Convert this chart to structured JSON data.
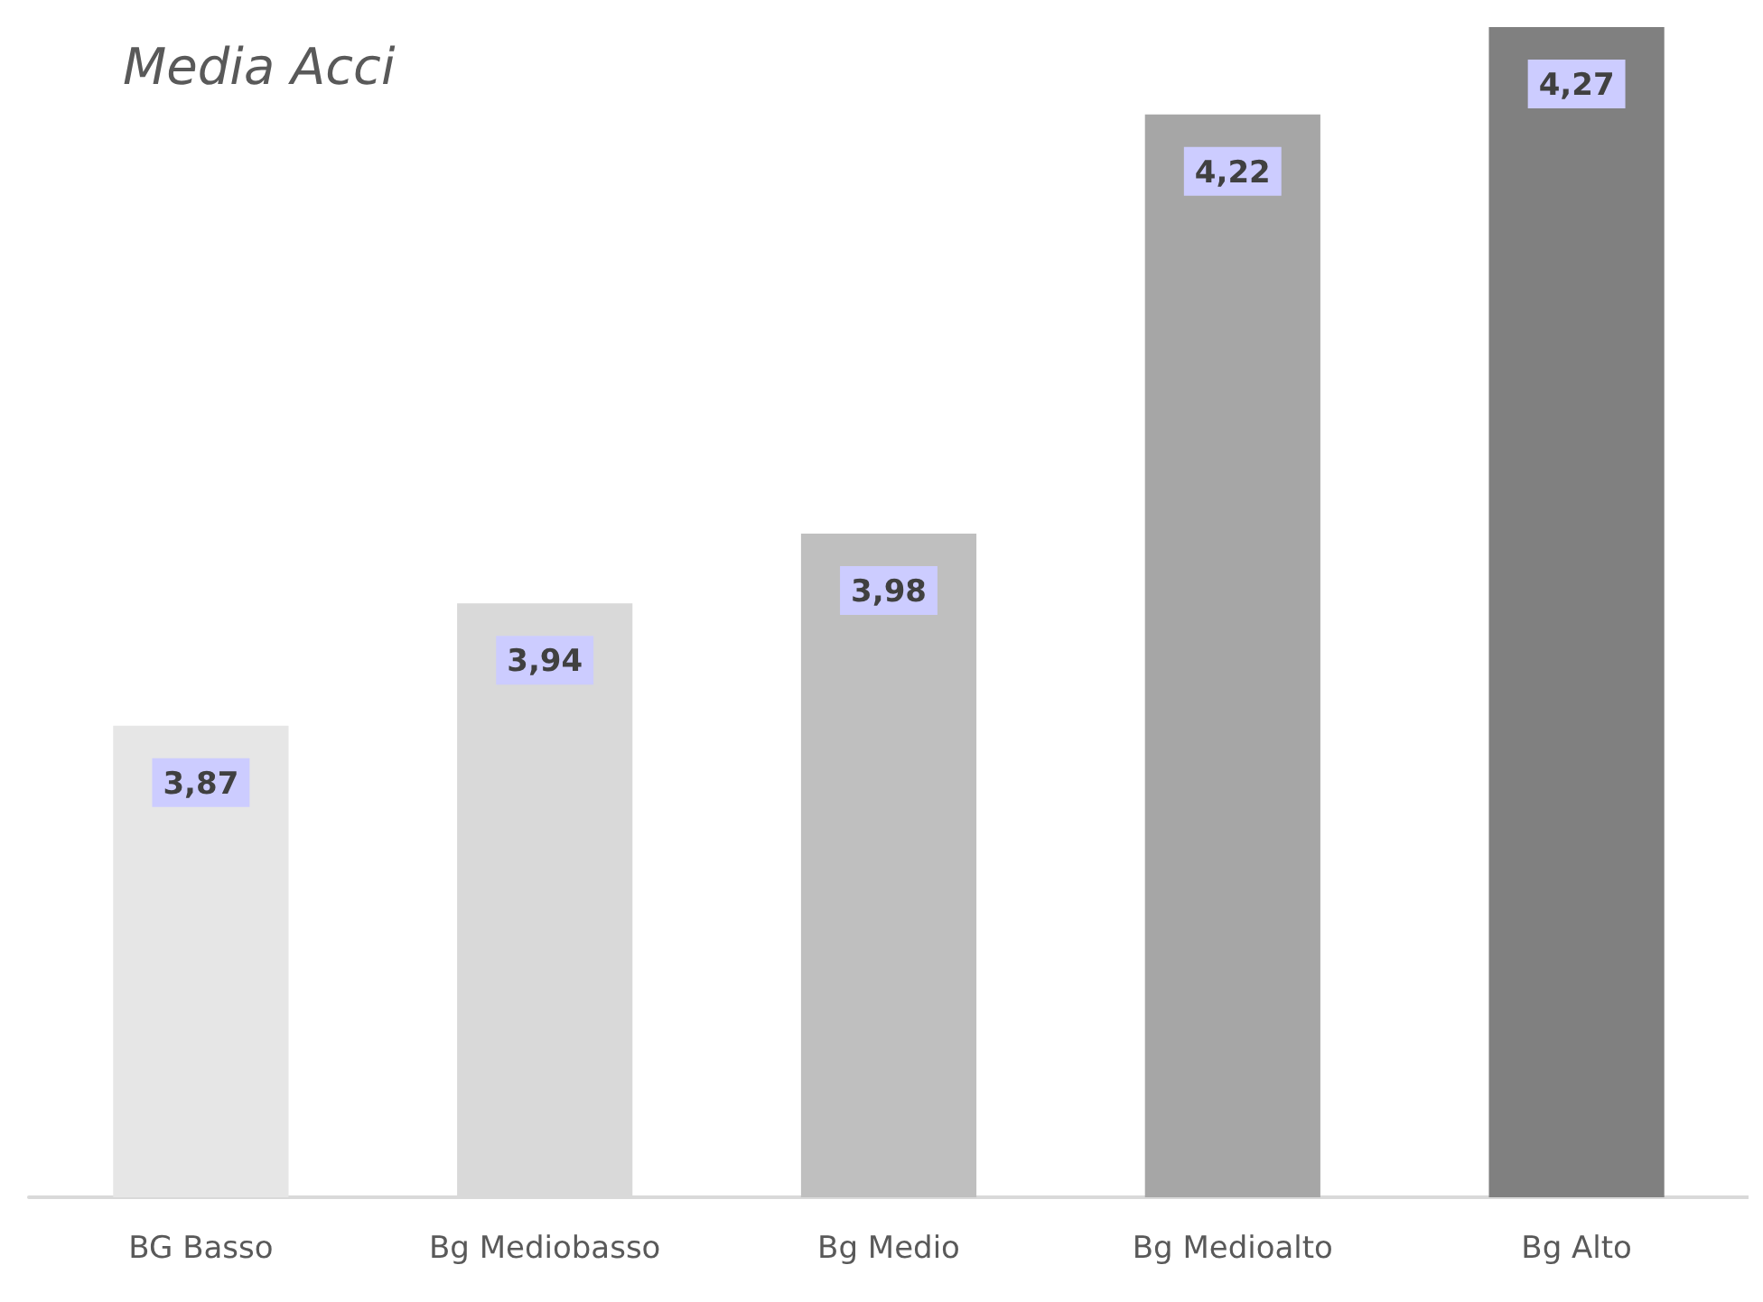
{
  "chart_data": {
    "type": "bar",
    "title": "Media Acci",
    "categories": [
      "BG Basso",
      "Bg Mediobasso",
      "Bg Medio",
      "Bg Medioalto",
      "Bg Alto"
    ],
    "values": [
      3.87,
      3.94,
      3.98,
      4.22,
      4.27
    ],
    "colors": [
      "#e6e6e6",
      "#d9d9d9",
      "#bfbfbf",
      "#a6a6a6",
      "#808080"
    ],
    "value_labels": [
      "3,87",
      "3,94",
      "3,98",
      "4,22",
      "4,27"
    ],
    "ylim": [
      3.6,
      4.27
    ],
    "tick_labels": "x",
    "grid": false
  }
}
